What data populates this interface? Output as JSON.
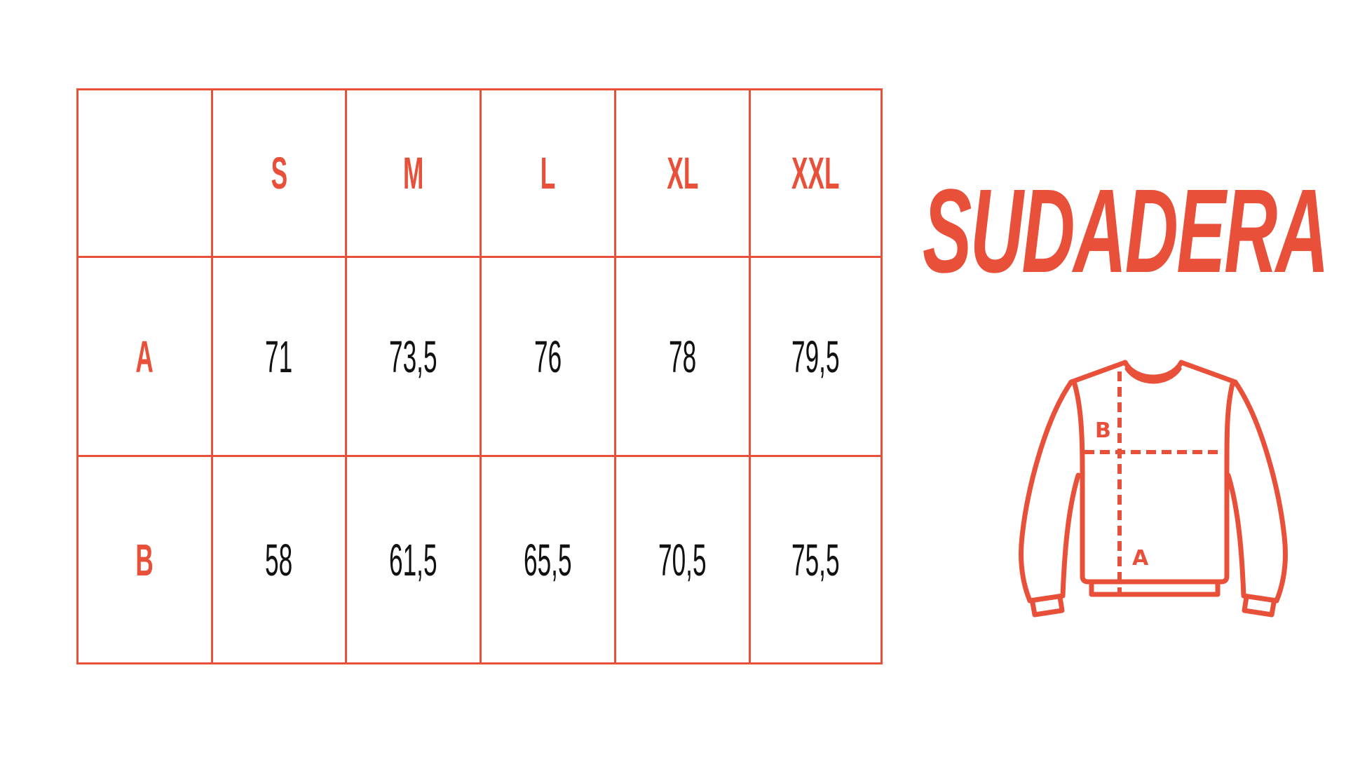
{
  "title": "SUDADERA",
  "accent_color": "#E8503A",
  "table": {
    "columns": [
      "",
      "S",
      "M",
      "L",
      "XL",
      "XXL"
    ],
    "rows": [
      {
        "label": "A",
        "values": [
          "71",
          "73,5",
          "76",
          "78",
          "79,5"
        ]
      },
      {
        "label": "B",
        "values": [
          "58",
          "61,5",
          "65,5",
          "70,5",
          "75,5"
        ]
      }
    ]
  },
  "diagram": {
    "label_a": "A",
    "label_b": "B",
    "icon": "sweatshirt-icon"
  }
}
